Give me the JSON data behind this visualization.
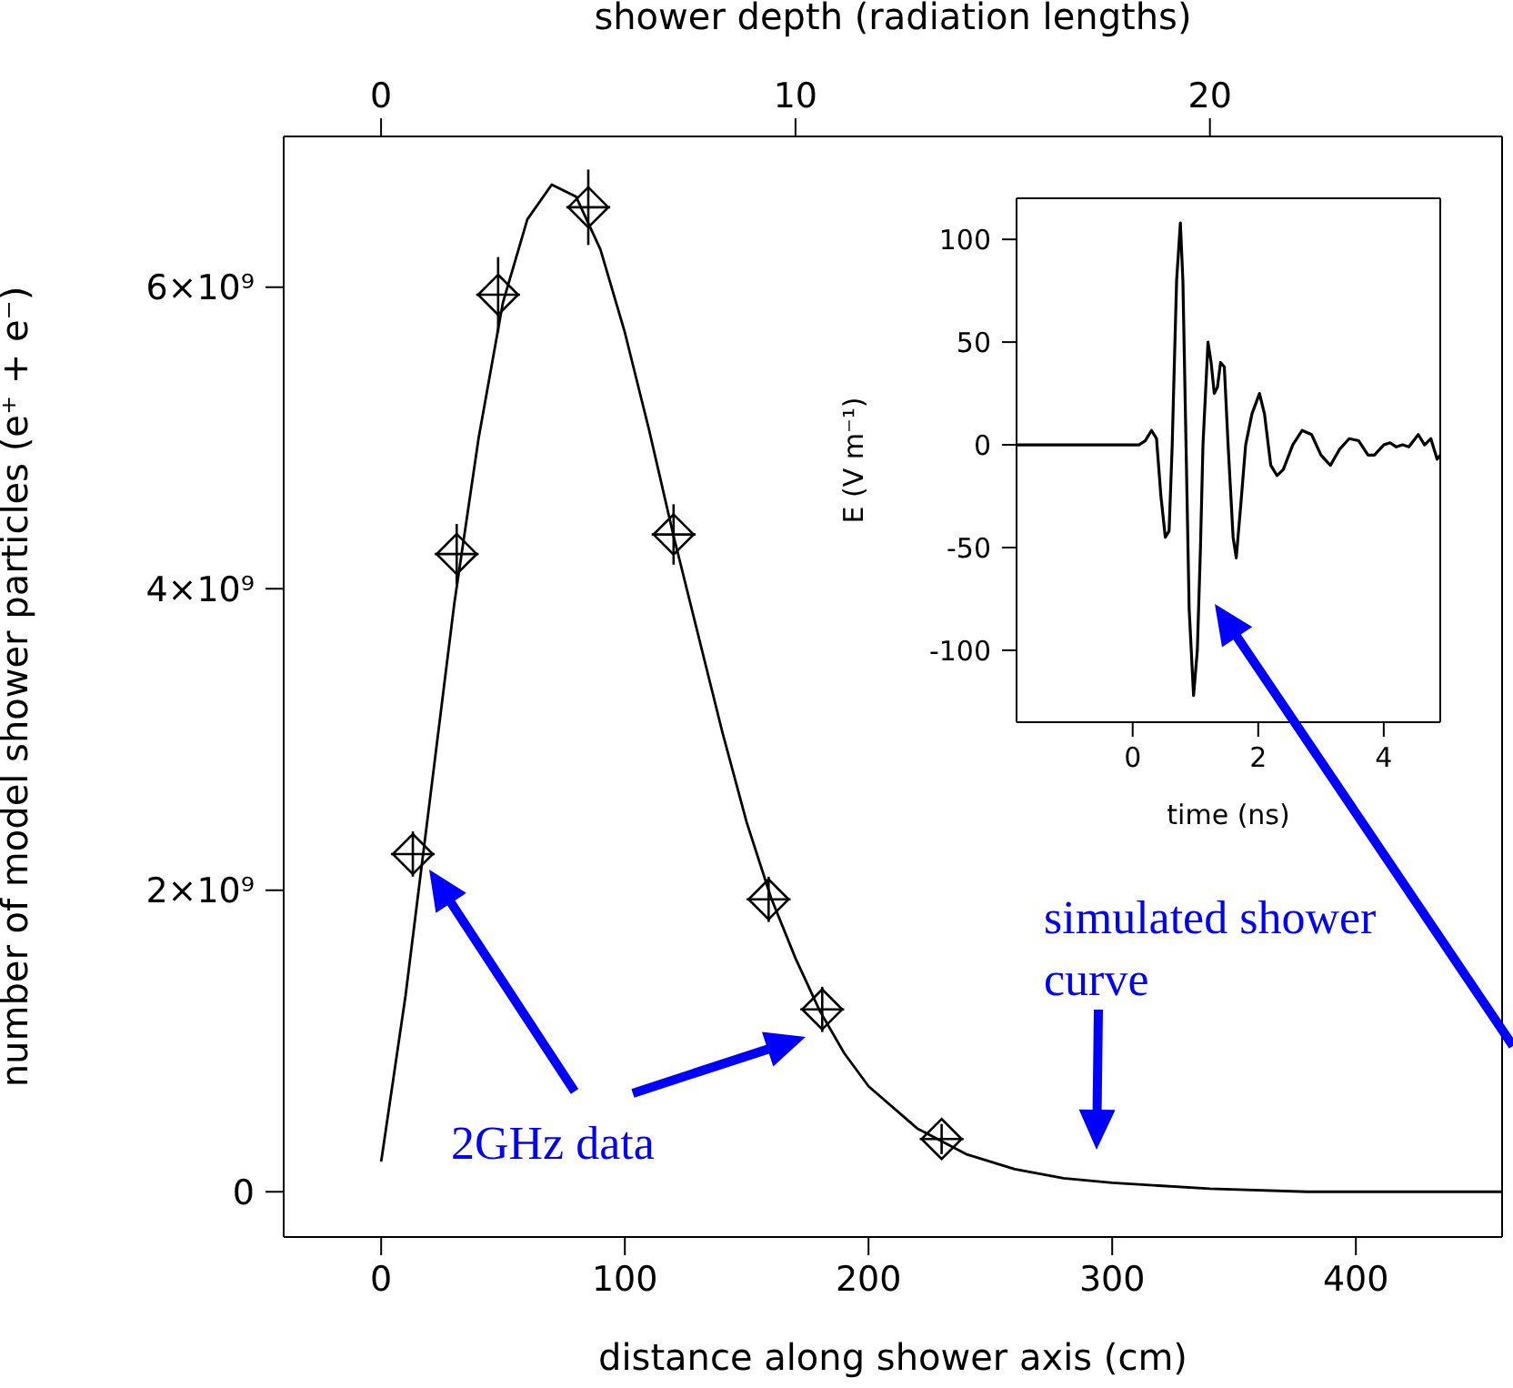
{
  "chart_data": [
    {
      "type": "line",
      "xlabel": "distance along shower axis (cm)",
      "x2label": "shower depth (radiation lengths)",
      "ylabel": "number of model shower particles (e⁺ + e⁻)",
      "xlim": [
        -40,
        460
      ],
      "xticks": [
        0,
        100,
        200,
        300,
        400
      ],
      "x2lim": [
        -2.35,
        27.05
      ],
      "x2ticks": [
        0,
        10,
        20
      ],
      "ylim": [
        -300000000,
        7000000000
      ],
      "yticks": [
        0,
        {
          "value": 2000000000,
          "label": "2×10⁹"
        },
        {
          "value": 4000000000,
          "label": "4×10⁹"
        },
        {
          "value": 6000000000,
          "label": "6×10⁹"
        }
      ],
      "series": [
        {
          "color": "#000000",
          "x": [
            0,
            10,
            20,
            30,
            40,
            50,
            60,
            70,
            80,
            90,
            100,
            110,
            120,
            130,
            140,
            150,
            160,
            170,
            180,
            190,
            200,
            220,
            240,
            260,
            280,
            300,
            340,
            380,
            460
          ],
          "values": [
            200000000,
            1300000000,
            2600000000,
            3900000000,
            5000000000,
            5900000000,
            6450000000,
            6680000000,
            6600000000,
            6250000000,
            5700000000,
            5050000000,
            4350000000,
            3700000000,
            3050000000,
            2450000000,
            1950000000,
            1550000000,
            1200000000,
            920000000,
            700000000,
            420000000,
            250000000,
            150000000,
            90000000,
            60000000,
            20000000,
            0,
            0
          ]
        },
        {
          "type": "scatter",
          "color": "#000000",
          "marker": "diamond",
          "x": [
            13,
            31,
            48,
            85,
            120,
            159,
            181,
            230
          ],
          "values": [
            2240000000,
            4230000000,
            5950000000,
            6530000000,
            4360000000,
            1940000000,
            1210000000,
            350000000
          ],
          "errors": [
            150000000,
            200000000,
            250000000,
            250000000,
            200000000,
            150000000,
            150000000,
            100000000
          ],
          "xerrors": [
            9,
            9,
            9,
            9,
            9,
            9,
            9,
            9
          ]
        }
      ],
      "annotations": [
        "2GHz data",
        "simulated shower curve"
      ]
    },
    {
      "type": "line",
      "xlabel": "time (ns)",
      "ylabel": "E (V m⁻¹)",
      "xlim": [
        -1.85,
        4.9
      ],
      "xticks": [
        0,
        2,
        4
      ],
      "ylim": [
        -135,
        120
      ],
      "yticks": [
        -100,
        -50,
        0,
        50,
        100
      ],
      "series": [
        {
          "color": "#000000",
          "x": [
            -1.85,
            0.1,
            0.2,
            0.3,
            0.38,
            0.45,
            0.52,
            0.58,
            0.63,
            0.66,
            0.7,
            0.76,
            0.8,
            0.85,
            0.9,
            0.97,
            1.03,
            1.08,
            1.12,
            1.16,
            1.2,
            1.25,
            1.3,
            1.35,
            1.4,
            1.46,
            1.52,
            1.6,
            1.65,
            1.72,
            1.8,
            1.9,
            2.02,
            2.1,
            2.2,
            2.3,
            2.4,
            2.55,
            2.7,
            2.85,
            3.0,
            3.15,
            3.3,
            3.45,
            3.6,
            3.75,
            3.85,
            4.0,
            4.1,
            4.2,
            4.3,
            4.4,
            4.55,
            4.65,
            4.75,
            4.85,
            4.9
          ],
          "values": [
            0,
            0,
            2,
            7,
            3,
            -25,
            -45,
            -42,
            0,
            35,
            80,
            108,
            80,
            0,
            -80,
            -122,
            -100,
            -50,
            0,
            25,
            50,
            40,
            25,
            28,
            40,
            38,
            0,
            -45,
            -55,
            -30,
            0,
            15,
            25,
            15,
            -10,
            -15,
            -12,
            0,
            7,
            5,
            -5,
            -10,
            -2,
            3,
            2,
            -5,
            -5,
            0,
            1,
            -1,
            0,
            -1,
            5,
            0,
            3,
            -7,
            -5
          ]
        }
      ]
    }
  ]
}
